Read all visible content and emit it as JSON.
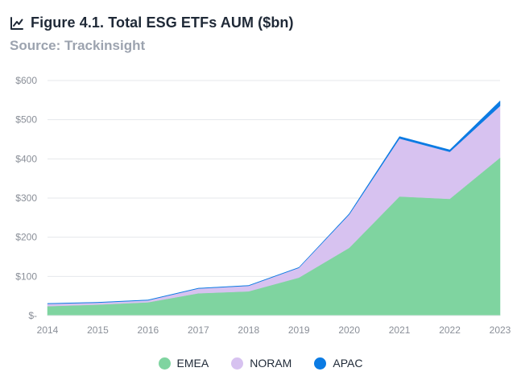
{
  "header": {
    "title": "Figure 4.1. Total ESG ETFs AUM ($bn)",
    "subtitle": "Source: Trackinsight",
    "icon": "chart-line-icon"
  },
  "chart_data": {
    "type": "area",
    "stacked": true,
    "title": "Figure 4.1. Total ESG ETFs AUM ($bn)",
    "subtitle": "Source: Trackinsight",
    "x": [
      "2014",
      "2015",
      "2016",
      "2017",
      "2018",
      "2019",
      "2020",
      "2021",
      "2022",
      "2023"
    ],
    "series": [
      {
        "name": "EMEA",
        "color": "#7fd4a0",
        "values": [
          24,
          28,
          34,
          57,
          62,
          97,
          173,
          304,
          298,
          403
        ]
      },
      {
        "name": "NORAM",
        "color": "#d7c2f0",
        "values": [
          6,
          5,
          5,
          12,
          14,
          25,
          85,
          148,
          120,
          132
        ]
      },
      {
        "name": "APAC",
        "color": "#0b7be3",
        "values": [
          1,
          1,
          1,
          1,
          1,
          1,
          2,
          5,
          5,
          13
        ]
      }
    ],
    "y_tick_labels": [
      "$-",
      "$100",
      "$200",
      "$300",
      "$400",
      "$500",
      "$600"
    ],
    "ylim": [
      0,
      600
    ],
    "grid": true,
    "legend": "bottom-center"
  }
}
